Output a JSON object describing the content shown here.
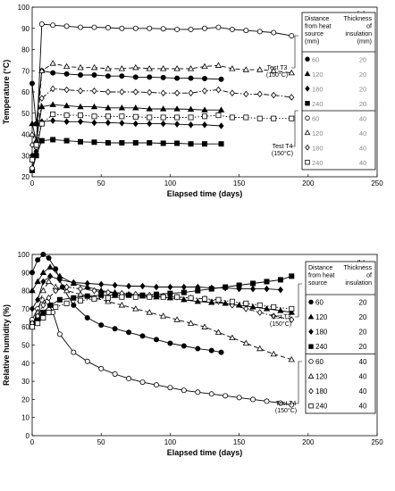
{
  "chart_data": [
    {
      "type": "line",
      "panel_label": "(a)",
      "xlabel": "Elapsed time (days)",
      "ylabel": "Temperature (°C)",
      "xlim": [
        0,
        250
      ],
      "ylim": [
        20,
        100
      ],
      "xticks": [
        0,
        50,
        100,
        150,
        200,
        250
      ],
      "yticks": [
        20,
        30,
        40,
        50,
        60,
        70,
        80,
        90,
        100
      ],
      "annotations": [
        {
          "id": "t3",
          "text": [
            "Test T3",
            "(150°C)"
          ]
        },
        {
          "id": "t4",
          "text": [
            "Test T4",
            "(150°C)"
          ]
        }
      ],
      "legend": {
        "header": {
          "col1": [
            "Distance",
            "from heat",
            "source",
            "(mm)"
          ],
          "col2": [
            "Thickness",
            "of",
            "insulation",
            "(mm)"
          ]
        },
        "rows": [
          {
            "marker": "circle-filled",
            "distance": "60",
            "thickness": "20"
          },
          {
            "marker": "triangle-filled",
            "distance": "120",
            "thickness": "20"
          },
          {
            "marker": "diamond-filled",
            "distance": "180",
            "thickness": "20"
          },
          {
            "marker": "square-filled",
            "distance": "240",
            "thickness": "20"
          },
          {
            "marker": "circle-open",
            "distance": "60",
            "thickness": "40"
          },
          {
            "marker": "triangle-open",
            "distance": "120",
            "thickness": "40"
          },
          {
            "marker": "diamond-open",
            "distance": "180",
            "thickness": "40"
          },
          {
            "marker": "square-open",
            "distance": "240",
            "thickness": "40"
          }
        ]
      },
      "series": [
        {
          "marker": "circle-filled",
          "line": "solid",
          "x": [
            0,
            3,
            7,
            15,
            25,
            35,
            45,
            55,
            65,
            75,
            85,
            95,
            105,
            115,
            125,
            137
          ],
          "y": [
            64,
            45,
            70,
            69,
            68.5,
            68,
            68,
            67.5,
            67.5,
            67,
            67,
            66.8,
            66.5,
            66.5,
            66.3,
            66
          ]
        },
        {
          "marker": "triangle-filled",
          "line": "solid",
          "x": [
            0,
            3,
            7,
            15,
            25,
            35,
            45,
            55,
            65,
            75,
            85,
            95,
            105,
            115,
            125,
            137
          ],
          "y": [
            45,
            37,
            53,
            54,
            53.5,
            53,
            53,
            52.5,
            52.5,
            52.5,
            52,
            52,
            52,
            51.8,
            51.5,
            51.5
          ]
        },
        {
          "marker": "diamond-filled",
          "line": "solid",
          "x": [
            0,
            3,
            7,
            15,
            25,
            35,
            45,
            55,
            65,
            75,
            85,
            95,
            105,
            115,
            125,
            137
          ],
          "y": [
            30,
            32,
            46,
            46.5,
            46,
            46,
            45.5,
            45.5,
            45.3,
            45,
            45,
            45,
            44.8,
            44.5,
            44.5,
            44
          ]
        },
        {
          "marker": "square-filled",
          "line": "solid",
          "x": [
            0,
            3,
            7,
            15,
            25,
            35,
            45,
            55,
            65,
            75,
            85,
            95,
            105,
            115,
            125,
            137
          ],
          "y": [
            23,
            30,
            37,
            37.5,
            37,
            36.5,
            36.3,
            36,
            36,
            36,
            36,
            35.8,
            35.8,
            35.5,
            35.5,
            35.5
          ]
        },
        {
          "marker": "circle-open",
          "line": "solid",
          "x": [
            0,
            3,
            7,
            15,
            25,
            35,
            45,
            55,
            65,
            75,
            85,
            95,
            105,
            115,
            125,
            135,
            145,
            155,
            165,
            175,
            188
          ],
          "y": [
            24,
            34,
            92,
            91.5,
            91,
            90.5,
            90.5,
            90.3,
            90,
            90,
            90,
            89.8,
            89.5,
            89.5,
            90,
            90.5,
            89.5,
            89,
            88.5,
            88,
            86.5
          ]
        },
        {
          "marker": "triangle-open",
          "line": "dashed",
          "x": [
            0,
            3,
            7,
            15,
            25,
            35,
            45,
            55,
            65,
            75,
            85,
            95,
            105,
            115,
            125,
            135,
            145,
            155,
            165,
            175,
            188
          ],
          "y": [
            40,
            36,
            70,
            73.5,
            72,
            71.5,
            71.5,
            71,
            71,
            71.5,
            71,
            71,
            71,
            71,
            72,
            72.5,
            71,
            70.5,
            70.5,
            70,
            69
          ]
        },
        {
          "marker": "diamond-open",
          "line": "dashdot",
          "x": [
            0,
            3,
            7,
            15,
            25,
            35,
            45,
            55,
            65,
            75,
            85,
            95,
            105,
            115,
            125,
            135,
            145,
            155,
            165,
            175,
            188
          ],
          "y": [
            35,
            35,
            57,
            61.5,
            61,
            60.5,
            60.5,
            60,
            60,
            60,
            59.8,
            59.5,
            59.5,
            59.5,
            60.5,
            61,
            59.5,
            59,
            59,
            58.5,
            57.5
          ]
        },
        {
          "marker": "square-open",
          "line": "dotted",
          "x": [
            0,
            3,
            7,
            15,
            25,
            35,
            45,
            55,
            65,
            75,
            85,
            95,
            105,
            115,
            125,
            135,
            145,
            155,
            165,
            175,
            188
          ],
          "y": [
            28,
            35,
            45,
            49.5,
            49,
            49,
            48.5,
            48.5,
            48.5,
            48.3,
            48,
            48,
            48,
            48,
            48.5,
            49,
            48,
            48,
            47.5,
            47.5,
            47.5
          ]
        }
      ]
    },
    {
      "type": "line",
      "panel_label": "(b)",
      "xlabel": "Elapsed time (days)",
      "ylabel": "Relative humidity (%)",
      "xlim": [
        0,
        250
      ],
      "ylim": [
        0,
        100
      ],
      "xticks": [
        0,
        50,
        100,
        150,
        200,
        250
      ],
      "yticks": [
        0,
        10,
        20,
        30,
        40,
        50,
        60,
        70,
        80,
        90,
        100
      ],
      "annotations": [
        {
          "id": "t3",
          "text": [
            "Test T3",
            "(150°C)"
          ]
        },
        {
          "id": "t4",
          "text": [
            "Test T4",
            "(150°C)"
          ]
        }
      ],
      "legend": {
        "header": {
          "col1": [
            "Distance",
            "from heat",
            "source"
          ],
          "col2": [
            "Thickness",
            "of",
            "insulation"
          ]
        },
        "rows": [
          {
            "marker": "circle-filled",
            "distance": "60",
            "thickness": "20"
          },
          {
            "marker": "triangle-filled",
            "distance": "120",
            "thickness": "20"
          },
          {
            "marker": "diamond-filled",
            "distance": "180",
            "thickness": "20"
          },
          {
            "marker": "square-filled",
            "distance": "240",
            "thickness": "20"
          },
          {
            "marker": "circle-open",
            "distance": "60",
            "thickness": "40"
          },
          {
            "marker": "triangle-open",
            "distance": "120",
            "thickness": "40"
          },
          {
            "marker": "diamond-open",
            "distance": "180",
            "thickness": "40"
          },
          {
            "marker": "square-open",
            "distance": "240",
            "thickness": "40"
          }
        ]
      },
      "series": [
        {
          "marker": "circle-filled",
          "line": "solid",
          "x": [
            0,
            4,
            8,
            12,
            17,
            22,
            30,
            40,
            50,
            60,
            70,
            80,
            90,
            100,
            110,
            120,
            130,
            137
          ],
          "y": [
            90,
            97,
            100,
            98,
            92,
            82,
            72,
            65,
            61,
            59,
            57,
            55,
            53,
            51,
            49.5,
            48,
            47,
            46
          ]
        },
        {
          "marker": "triangle-filled",
          "line": "solid",
          "x": [
            0,
            4,
            8,
            13,
            20,
            30,
            40,
            50,
            60,
            70,
            80,
            90,
            100,
            110,
            120,
            130,
            140,
            150,
            160,
            170,
            180,
            188
          ],
          "y": [
            80,
            85,
            90,
            93,
            88,
            84,
            82,
            80,
            79,
            78,
            77,
            76.5,
            76,
            75,
            74,
            73.5,
            73,
            72,
            71,
            70,
            69,
            68
          ]
        },
        {
          "marker": "diamond-filled",
          "line": "solid",
          "x": [
            0,
            4,
            8,
            13,
            20,
            30,
            40,
            50,
            60,
            70,
            80,
            90,
            100,
            110,
            120,
            130,
            140,
            150,
            160,
            170,
            180
          ],
          "y": [
            70,
            75,
            85,
            88,
            86,
            84.5,
            84,
            83.5,
            83,
            82.5,
            82.5,
            82,
            82,
            82,
            82,
            81.5,
            81.5,
            81,
            81,
            81,
            80.5
          ]
        },
        {
          "marker": "square-filled",
          "line": "solid",
          "x": [
            0,
            4,
            8,
            13,
            20,
            30,
            40,
            50,
            60,
            70,
            80,
            90,
            100,
            110,
            120,
            130,
            140,
            150,
            160,
            170,
            180,
            188
          ],
          "y": [
            62,
            65,
            68,
            72,
            75,
            76,
            77,
            77.5,
            77.5,
            77.5,
            77.5,
            78,
            78.5,
            79,
            80,
            81,
            82,
            83,
            84,
            85,
            86,
            88
          ]
        },
        {
          "marker": "circle-open",
          "line": "solid",
          "x": [
            0,
            4,
            7,
            11,
            15,
            20,
            30,
            40,
            50,
            60,
            70,
            80,
            90,
            100,
            110,
            120,
            130,
            140,
            150,
            160,
            170,
            180,
            188
          ],
          "y": [
            64,
            70,
            75,
            74,
            68,
            56,
            46,
            41,
            37,
            34,
            31.5,
            29.5,
            28,
            26.5,
            25,
            24,
            23,
            22,
            21,
            20,
            19,
            18,
            17
          ]
        },
        {
          "marker": "triangle-open",
          "line": "dashed",
          "x": [
            0,
            4,
            8,
            12,
            17,
            25,
            35,
            45,
            55,
            65,
            75,
            85,
            95,
            105,
            115,
            125,
            135,
            145,
            155,
            165,
            175,
            188
          ],
          "y": [
            60,
            68,
            80,
            85,
            82,
            80,
            78,
            76,
            74,
            72,
            70,
            68,
            66,
            64,
            62,
            60,
            57,
            54,
            51,
            48,
            45,
            42
          ]
        },
        {
          "marker": "diamond-open",
          "line": "dashdot",
          "x": [
            0,
            4,
            8,
            12,
            17,
            25,
            35,
            45,
            55,
            65,
            75,
            85,
            95,
            105,
            115,
            125,
            135,
            145,
            155,
            165,
            175,
            188
          ],
          "y": [
            62,
            66,
            72,
            76,
            80,
            82,
            81,
            80,
            79,
            78.5,
            78,
            77.5,
            77,
            76.5,
            76,
            75.5,
            74,
            72,
            70,
            68,
            66,
            64
          ]
        },
        {
          "marker": "square-open",
          "line": "dotted",
          "x": [
            0,
            4,
            8,
            12,
            17,
            25,
            35,
            45,
            55,
            65,
            75,
            85,
            95,
            105,
            115,
            125,
            135,
            145,
            155,
            165,
            175,
            188
          ],
          "y": [
            60,
            62,
            65,
            68,
            71,
            73,
            74.5,
            75.5,
            76,
            76.5,
            76.5,
            76.5,
            76.5,
            76.5,
            76,
            75.5,
            75,
            74,
            73,
            72,
            71,
            70
          ]
        }
      ]
    }
  ]
}
